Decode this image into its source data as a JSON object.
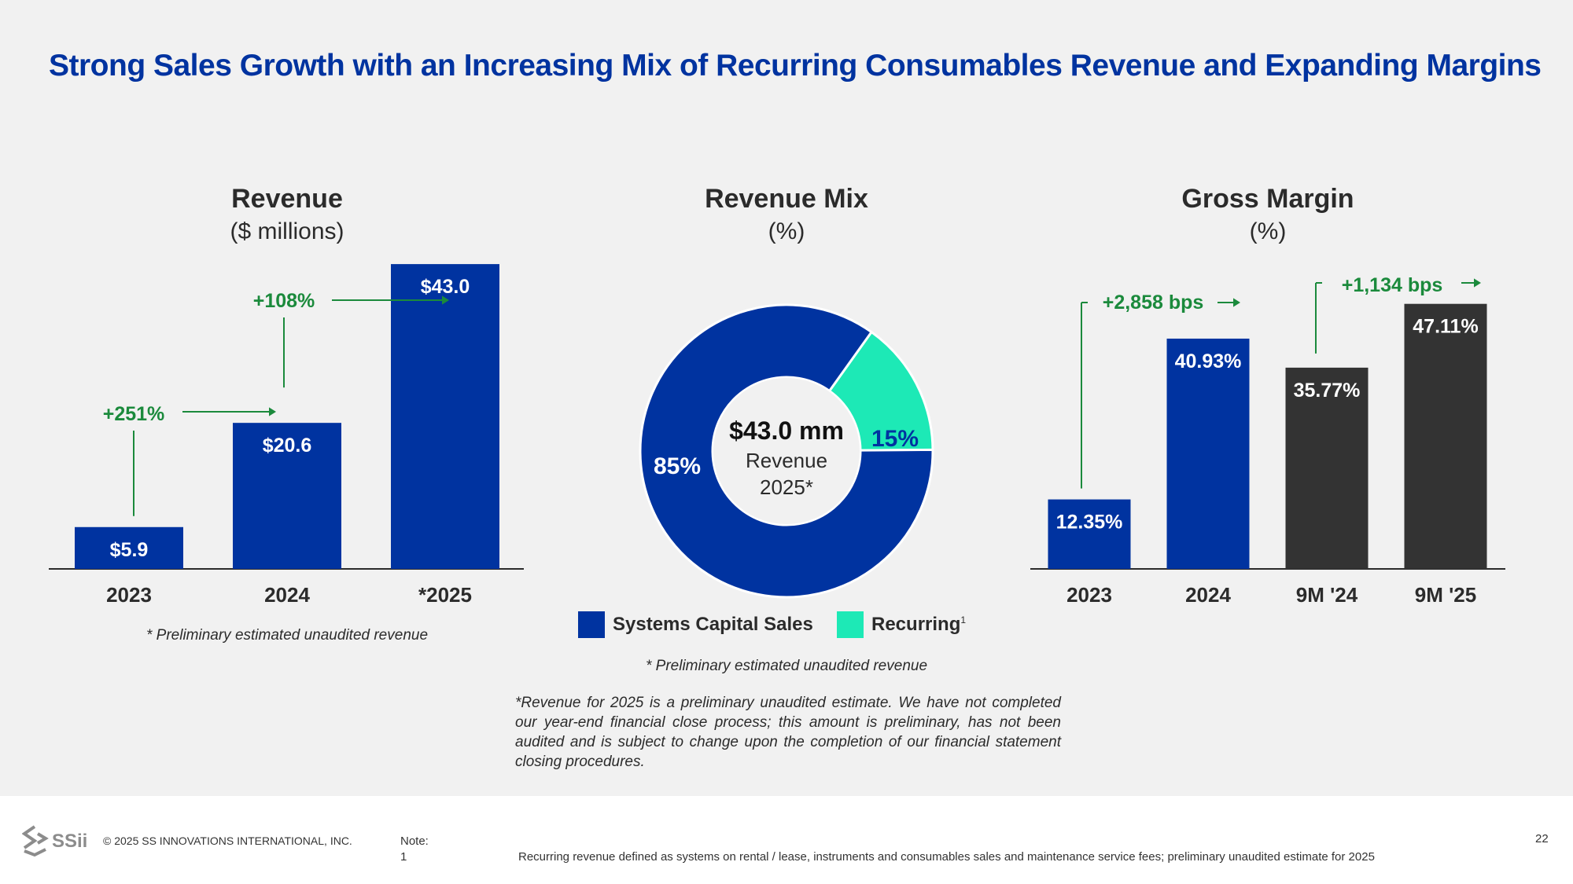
{
  "slide": {
    "title": "Strong Sales Growth with an Increasing Mix of Recurring Consumables Revenue and Expanding Margins"
  },
  "panels": {
    "revenue": {
      "title": "Revenue",
      "subtitle": "($ millions)",
      "footnote": "* Preliminary estimated unaudited revenue"
    },
    "mix": {
      "title": "Revenue Mix",
      "subtitle": "(%)",
      "footnote": "* Preliminary estimated unaudited revenue",
      "center_value": "$43.0 mm",
      "center_label_1": "Revenue",
      "center_label_2": "2025*"
    },
    "margin": {
      "title": "Gross Margin",
      "subtitle": "(%)"
    }
  },
  "colors": {
    "blue": "#0033a0",
    "dark": "#333333",
    "teal": "#1de9b6",
    "green": "#1b8a3c",
    "title_blue": "#0033a0"
  },
  "chart_data": [
    {
      "type": "bar",
      "categories": [
        "2023",
        "2024",
        "*2025"
      ],
      "values": [
        5.9,
        20.6,
        43.0
      ],
      "value_labels": [
        "$5.9",
        "$20.6",
        "$43.0"
      ],
      "bar_colors": [
        "#0033a0",
        "#0033a0",
        "#0033a0"
      ],
      "ylim": [
        0,
        48
      ],
      "annotations": [
        {
          "text": "+251%",
          "from": "2023",
          "to": "2024"
        },
        {
          "text": "+108%",
          "from": "2024",
          "to": "*2025"
        }
      ]
    },
    {
      "type": "pie",
      "slices": [
        {
          "name": "Systems Capital Sales",
          "value": 85,
          "label": "85%",
          "color": "#0033a0"
        },
        {
          "name": "Recurring",
          "value": 15,
          "label": "15%",
          "color": "#1de9b6"
        }
      ],
      "legend": [
        "Systems Capital Sales",
        "Recurring"
      ],
      "legend_superscript": "1"
    },
    {
      "type": "bar",
      "categories": [
        "2023",
        "2024",
        "9M '24",
        "9M '25"
      ],
      "values": [
        12.35,
        40.93,
        35.77,
        47.11
      ],
      "value_labels": [
        "12.35%",
        "40.93%",
        "35.77%",
        "47.11%"
      ],
      "bar_colors": [
        "#0033a0",
        "#0033a0",
        "#333333",
        "#333333"
      ],
      "ylim": [
        0,
        50
      ],
      "annotations": [
        {
          "text": "+2,858 bps",
          "from": "2023",
          "to": "2024"
        },
        {
          "text": "+1,134 bps",
          "from": "9M '24",
          "to": "9M '25"
        }
      ]
    }
  ],
  "disclaimer": "*Revenue for 2025 is a preliminary unaudited estimate. We have not completed our year-end financial close process; this amount is preliminary, has not been audited and is subject to change upon the completion of our financial statement closing procedures.",
  "footer": {
    "logo_text": "SSii",
    "copyright": "© 2025 SS INNOVATIONS INTERNATIONAL, INC.",
    "note_label": "Note:",
    "note_num": "1",
    "note_text": "Recurring revenue defined as systems on rental / lease, instruments and consumables sales and maintenance service fees; preliminary unaudited estimate for 2025",
    "page": "22"
  }
}
